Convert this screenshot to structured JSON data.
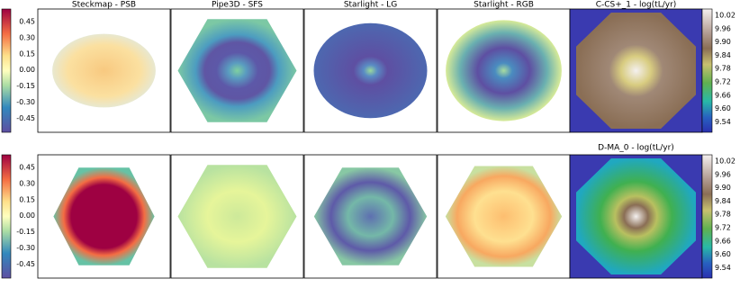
{
  "top_titles": [
    "Steckmap - PSB",
    "Pipe3D - SFS",
    "Starlight - LG",
    "Starlight - RGB",
    "C-CS+_1 - log(tL/yr)"
  ],
  "bottom_title": "D-MA_0 - log(tL/yr)",
  "left_colorbar": {
    "ticks": [
      "0.45",
      "0.30",
      "0.15",
      "0.00",
      "-0.15",
      "-0.30",
      "-0.45"
    ]
  },
  "right_colorbar": {
    "ticks": [
      "10.02",
      "9.96",
      "9.90",
      "9.84",
      "9.78",
      "9.72",
      "9.66",
      "9.60",
      "9.54"
    ]
  }
}
